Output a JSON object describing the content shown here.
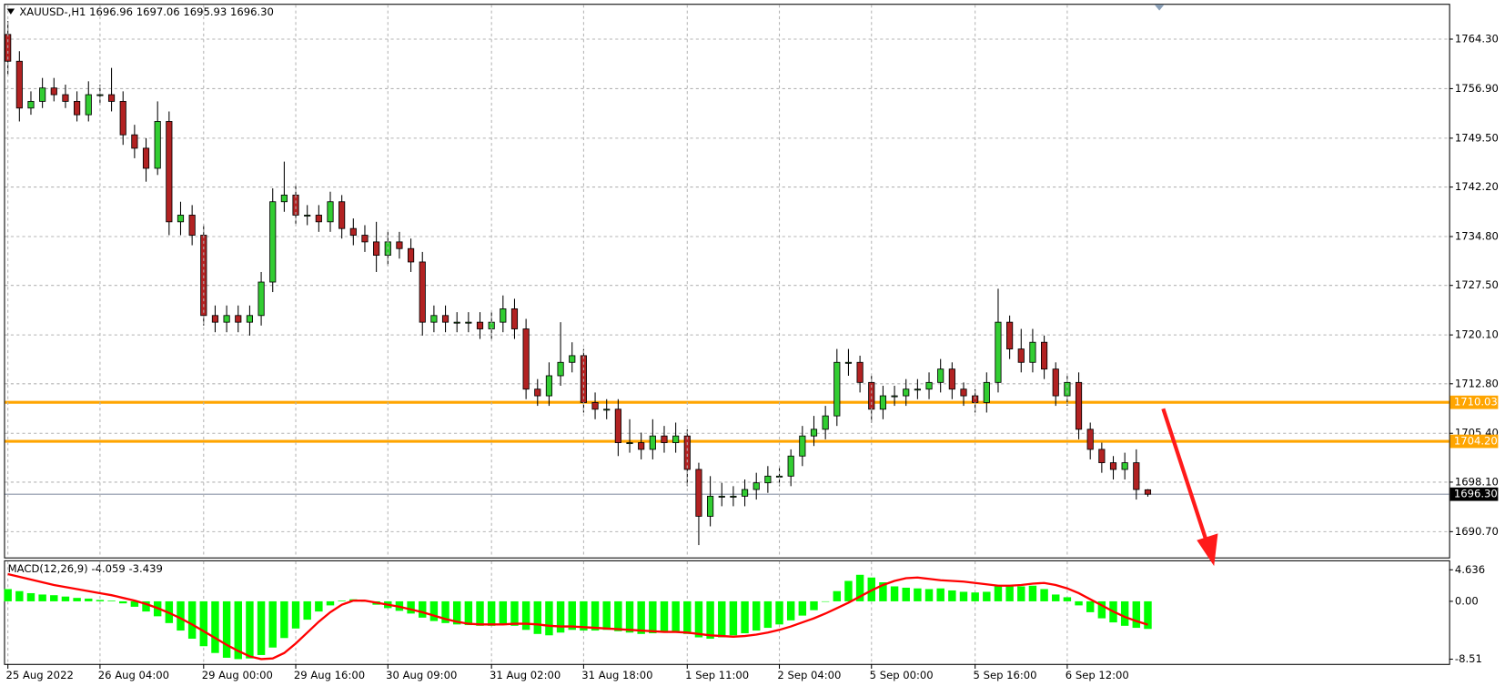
{
  "chart_data": [
    {
      "type": "candlestick",
      "title": "XAUUSD-,H1  1696.96 1697.06 1695.93 1696.30",
      "up_color": "#32cd32",
      "down_color": "#b22222",
      "wick_color": "#000000",
      "open": [
        1765,
        1761,
        1754,
        1755,
        1757,
        1756,
        1755,
        1753,
        1756,
        1756,
        1755,
        1750,
        1748,
        1745,
        1752,
        1737,
        1738,
        1735,
        1723,
        1722,
        1723,
        1722,
        1723,
        1728,
        1740,
        1741,
        1738,
        1738,
        1737,
        1740,
        1736,
        1735,
        1734,
        1732,
        1734,
        1733,
        1731,
        1722,
        1723,
        1722,
        1722,
        1722,
        1721,
        1722,
        1724,
        1721,
        1712,
        1711,
        1714,
        1716,
        1717,
        1710,
        1709,
        1709,
        1704,
        1704,
        1703,
        1705,
        1704,
        1705,
        1700,
        1693,
        1696,
        1696,
        1696,
        1697,
        1698,
        1699,
        1699,
        1702,
        1705,
        1706,
        1708,
        1716,
        1716,
        1713,
        1709,
        1711,
        1711,
        1712,
        1712,
        1713,
        1715,
        1712,
        1711,
        1710,
        1713,
        1722,
        1718,
        1716,
        1719,
        1715,
        1711,
        1713,
        1706,
        1703,
        1701,
        1700,
        1701,
        1696.96
      ],
      "high": [
        1767,
        1762.5,
        1756.5,
        1758.5,
        1758.5,
        1757.5,
        1756.5,
        1758,
        1757.5,
        1760,
        1756.5,
        1751.5,
        1749.5,
        1755,
        1753.5,
        1740,
        1739.5,
        1736.5,
        1724.5,
        1724.5,
        1724.5,
        1724.5,
        1729.5,
        1742,
        1746,
        1742.5,
        1739.5,
        1739.5,
        1741.5,
        1741,
        1737.5,
        1736.5,
        1737,
        1735.5,
        1735.5,
        1734.5,
        1732.5,
        1724.5,
        1724.5,
        1723.5,
        1723.5,
        1723.5,
        1723.5,
        1726,
        1725.5,
        1722.5,
        1713.5,
        1716,
        1722,
        1719,
        1718,
        1711.5,
        1710.5,
        1710.5,
        1707.5,
        1705.5,
        1707.5,
        1706.5,
        1707,
        1706,
        1701,
        1699,
        1698,
        1697.5,
        1698.5,
        1699.5,
        1700.5,
        1700.5,
        1703,
        1706.5,
        1708,
        1709.5,
        1718,
        1718,
        1717,
        1714,
        1712.5,
        1712.5,
        1713.5,
        1713.5,
        1714.5,
        1716.5,
        1716,
        1713,
        1712,
        1714.5,
        1727,
        1723,
        1721,
        1721,
        1720,
        1716,
        1714,
        1714.5,
        1707,
        1704,
        1702,
        1702.5,
        1703,
        1697.06
      ],
      "low": [
        1759,
        1752,
        1753,
        1754,
        1755,
        1754,
        1752,
        1752,
        1754.5,
        1753.5,
        1748.5,
        1746.5,
        1743,
        1744,
        1735,
        1735,
        1733.5,
        1721.5,
        1720.5,
        1720.5,
        1720.5,
        1720,
        1721.5,
        1726.5,
        1738.5,
        1736.5,
        1736.5,
        1735.5,
        1735.5,
        1734.5,
        1733.5,
        1732.5,
        1729.5,
        1730.5,
        1731.5,
        1729.5,
        1720,
        1720.5,
        1720.5,
        1720.5,
        1720.5,
        1719.5,
        1719.5,
        1720.5,
        1719.5,
        1710.5,
        1709.5,
        1709.5,
        1712.5,
        1714.5,
        1708.5,
        1707.5,
        1707.5,
        1702,
        1702.5,
        1701.5,
        1701.5,
        1702.5,
        1702.5,
        1697.5,
        1688.7,
        1691.5,
        1694.5,
        1694.5,
        1694.5,
        1695.5,
        1696.5,
        1697.5,
        1697.5,
        1700.5,
        1703.5,
        1704.5,
        1706.5,
        1714,
        1711.5,
        1707,
        1707.5,
        1709.5,
        1709.5,
        1710.5,
        1710.5,
        1711.5,
        1710.5,
        1709.5,
        1708.5,
        1708.5,
        1711.5,
        1716.5,
        1714.5,
        1714.5,
        1713.5,
        1709.5,
        1709.5,
        1704.5,
        1701.5,
        1699.5,
        1698.5,
        1698.5,
        1695.5,
        1695.93
      ],
      "close": [
        1761,
        1754,
        1755,
        1757,
        1756,
        1755,
        1753,
        1756,
        1756,
        1755,
        1750,
        1748,
        1745,
        1752,
        1737,
        1738,
        1735,
        1723,
        1722,
        1723,
        1722,
        1723,
        1728,
        1740,
        1741,
        1738,
        1738,
        1737,
        1740,
        1736,
        1735,
        1734,
        1732,
        1734,
        1733,
        1731,
        1722,
        1723,
        1722,
        1722,
        1722,
        1721,
        1722,
        1724,
        1721,
        1712,
        1711,
        1714,
        1716,
        1717,
        1710,
        1709,
        1709,
        1704,
        1704,
        1703,
        1705,
        1704,
        1705,
        1700,
        1693,
        1696,
        1696,
        1696,
        1697,
        1698,
        1699,
        1699,
        1702,
        1705,
        1706,
        1708,
        1716,
        1716,
        1713,
        1709,
        1711,
        1711,
        1712,
        1712,
        1713,
        1715,
        1712,
        1711,
        1710,
        1713,
        1722,
        1718,
        1716,
        1719,
        1715,
        1711,
        1713,
        1706,
        1703,
        1701,
        1700,
        1701,
        1697,
        1696.3
      ],
      "ylim": [
        1686.85,
        1769.43
      ],
      "yticks": [
        {
          "value": 1764.3,
          "label": "1764.30"
        },
        {
          "value": 1756.9,
          "label": "1756.90"
        },
        {
          "value": 1749.5,
          "label": "1749.50"
        },
        {
          "value": 1742.2,
          "label": "1742.20"
        },
        {
          "value": 1734.8,
          "label": "1734.80"
        },
        {
          "value": 1727.5,
          "label": "1727.50"
        },
        {
          "value": 1720.1,
          "label": "1720.10"
        },
        {
          "value": 1712.8,
          "label": "1712.80"
        },
        {
          "value": 1705.4,
          "label": "1705.40"
        },
        {
          "value": 1698.1,
          "label": "1698.10"
        },
        {
          "value": 1690.7,
          "label": "1690.70"
        }
      ],
      "grid": true,
      "levels": [
        {
          "value": 1710.03,
          "color": "#ffa500"
        },
        {
          "value": 1704.2,
          "label": "1704.20",
          "color": "#ffa500"
        }
      ],
      "current_price": {
        "value": 1696.3,
        "label": "1696.30"
      }
    },
    {
      "type": "macd",
      "title": "MACD(12,26,9) -4.059 -3.439",
      "categories": [
        "25 Aug 2022",
        null,
        null,
        null,
        null,
        null,
        null,
        null,
        "26 Aug 04:00",
        null,
        null,
        null,
        null,
        null,
        null,
        null,
        null,
        "29 Aug 00:00",
        null,
        null,
        null,
        null,
        null,
        null,
        null,
        "29 Aug 16:00",
        null,
        null,
        null,
        null,
        null,
        null,
        null,
        "30 Aug 09:00",
        null,
        null,
        null,
        null,
        null,
        null,
        null,
        null,
        "31 Aug 02:00",
        null,
        null,
        null,
        null,
        null,
        null,
        null,
        "31 Aug 18:00",
        null,
        null,
        null,
        null,
        null,
        null,
        null,
        null,
        "1 Sep 11:00",
        null,
        null,
        null,
        null,
        null,
        null,
        null,
        "2 Sep 04:00",
        null,
        null,
        null,
        null,
        null,
        null,
        null,
        "5 Sep 00:00",
        null,
        null,
        null,
        null,
        null,
        null,
        null,
        null,
        "5 Sep 16:00",
        null,
        null,
        null,
        null,
        null,
        null,
        null,
        "6 Sep 12:00",
        null,
        null,
        null,
        null,
        null,
        null,
        null
      ],
      "series": [
        {
          "kind": "histogram",
          "color": "#00ff00",
          "values": [
            1.8,
            1.5,
            1.2,
            1.0,
            0.9,
            0.7,
            0.5,
            0.4,
            0.2,
            0.1,
            -0.3,
            -0.8,
            -1.5,
            -2.2,
            -3.2,
            -4.3,
            -5.5,
            -6.6,
            -7.6,
            -8.3,
            -8.5,
            -8.4,
            -7.9,
            -6.8,
            -5.4,
            -4.0,
            -2.7,
            -1.5,
            -0.6,
            0.1,
            0.3,
            0.0,
            -0.5,
            -1.0,
            -1.4,
            -1.8,
            -2.4,
            -2.9,
            -3.2,
            -3.4,
            -3.5,
            -3.6,
            -3.6,
            -3.5,
            -3.6,
            -4.2,
            -4.8,
            -5.0,
            -4.6,
            -4.2,
            -4.3,
            -4.3,
            -4.2,
            -4.4,
            -4.6,
            -4.8,
            -4.7,
            -4.6,
            -4.6,
            -4.8,
            -5.3,
            -5.5,
            -5.3,
            -5.0,
            -4.7,
            -4.3,
            -3.9,
            -3.4,
            -2.8,
            -2.1,
            -1.3,
            0.0,
            1.5,
            3.0,
            3.9,
            3.5,
            2.8,
            2.2,
            2.0,
            1.9,
            1.8,
            1.9,
            1.6,
            1.4,
            1.3,
            1.4,
            2.3,
            2.4,
            2.2,
            2.3,
            1.8,
            1.0,
            0.6,
            -0.6,
            -1.6,
            -2.5,
            -3.1,
            -3.6,
            -3.9,
            -4.059
          ]
        },
        {
          "kind": "line",
          "color": "#ff0000",
          "values": [
            4.0,
            3.6,
            3.2,
            2.8,
            2.4,
            2.1,
            1.8,
            1.5,
            1.2,
            0.9,
            0.5,
            0.1,
            -0.4,
            -1.0,
            -1.7,
            -2.5,
            -3.4,
            -4.4,
            -5.4,
            -6.4,
            -7.3,
            -8.1,
            -8.5,
            -8.4,
            -7.6,
            -6.2,
            -4.6,
            -3.0,
            -1.6,
            -0.5,
            0.1,
            0.1,
            -0.2,
            -0.5,
            -0.8,
            -1.2,
            -1.6,
            -2.1,
            -2.6,
            -3.0,
            -3.3,
            -3.4,
            -3.4,
            -3.4,
            -3.3,
            -3.3,
            -3.4,
            -3.6,
            -3.7,
            -3.7,
            -3.8,
            -3.9,
            -4.0,
            -4.1,
            -4.2,
            -4.3,
            -4.4,
            -4.5,
            -4.5,
            -4.6,
            -4.8,
            -5.0,
            -5.1,
            -5.2,
            -5.1,
            -4.9,
            -4.6,
            -4.2,
            -3.7,
            -3.1,
            -2.5,
            -1.8,
            -1.0,
            -0.2,
            0.7,
            1.6,
            2.4,
            3.0,
            3.4,
            3.5,
            3.3,
            3.1,
            3.0,
            2.9,
            2.7,
            2.5,
            2.3,
            2.3,
            2.4,
            2.6,
            2.7,
            2.4,
            1.9,
            1.2,
            0.3,
            -0.6,
            -1.5,
            -2.3,
            -2.9,
            -3.439
          ]
        }
      ],
      "ylim": [
        -9.21,
        5.89
      ],
      "yticks": [
        4.636,
        {
          "value": 0,
          "label": "0.00"
        },
        -8.51
      ]
    }
  ]
}
